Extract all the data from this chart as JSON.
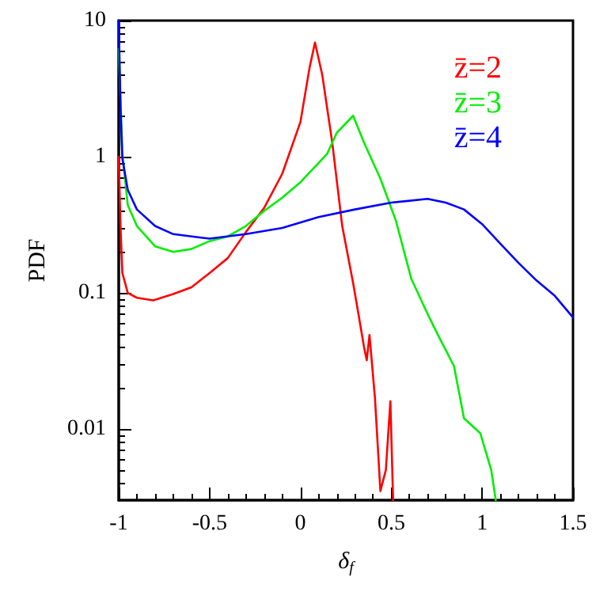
{
  "chart_data": {
    "type": "line",
    "xlabel": "δ$_{f}$",
    "ylabel": "PDF",
    "log": "y",
    "grid": false,
    "legend": "top right",
    "line_style": "solid",
    "xlim": [
      -1,
      1.5
    ],
    "xticks": [
      -1,
      -0.5,
      0,
      0.5,
      1,
      1.5
    ],
    "ylim": [
      0.003,
      10
    ],
    "yticks": [
      0.01,
      0.1,
      1,
      10
    ],
    "series": [
      {
        "name": "z̄=2",
        "color": "#ff0000",
        "x": [
          -1,
          -0.99,
          -0.98,
          -0.95,
          -0.9,
          -0.81,
          -0.7,
          -0.6,
          -0.5,
          -0.4,
          -0.3,
          -0.2,
          -0.1,
          0,
          0.05,
          0.08,
          0.12,
          0.175,
          0.23,
          0.29,
          0.32,
          0.35,
          0.365,
          0.38,
          0.41,
          0.44,
          0.47,
          0.495,
          0.51
        ],
        "values": [
          1,
          0.3,
          0.14,
          0.1,
          0.092,
          0.088,
          0.098,
          0.11,
          0.14,
          0.18,
          0.28,
          0.42,
          0.75,
          1.8,
          4.5,
          6.9,
          4,
          1.27,
          0.31,
          0.118,
          0.069,
          0.04,
          0.032,
          0.049,
          0.017,
          0.0035,
          0.005,
          0.016,
          0.003
        ]
      },
      {
        "name": "z̄=3",
        "color": "#00ee00",
        "x": [
          -1,
          -0.98,
          -0.95,
          -0.9,
          -0.8,
          -0.7,
          -0.6,
          -0.5,
          -0.4,
          -0.3,
          -0.2,
          -0.1,
          0,
          0.1,
          0.147,
          0.2,
          0.29,
          0.35,
          0.44,
          0.525,
          0.61,
          0.7,
          0.757,
          0.845,
          0.9,
          0.99,
          1.05,
          1.075
        ],
        "values": [
          6.2,
          1.05,
          0.44,
          0.31,
          0.22,
          0.2,
          0.21,
          0.24,
          0.26,
          0.31,
          0.4,
          0.5,
          0.65,
          0.9,
          1.05,
          1.5,
          2,
          1.27,
          0.69,
          0.34,
          0.127,
          0.07,
          0.049,
          0.029,
          0.012,
          0.0093,
          0.005,
          0.003
        ]
      },
      {
        "name": "z̄=4",
        "color": "#0000ff",
        "x": [
          -1,
          -0.99,
          -0.98,
          -0.95,
          -0.9,
          -0.8,
          -0.7,
          -0.5,
          -0.3,
          -0.1,
          0.1,
          0.3,
          0.5,
          0.7,
          0.8,
          0.9,
          1,
          1.1,
          1.2,
          1.3,
          1.4,
          1.5
        ],
        "values": [
          10,
          2.3,
          0.97,
          0.57,
          0.41,
          0.31,
          0.27,
          0.25,
          0.27,
          0.3,
          0.36,
          0.41,
          0.46,
          0.49,
          0.46,
          0.41,
          0.32,
          0.23,
          0.166,
          0.123,
          0.095,
          0.066
        ]
      }
    ]
  }
}
